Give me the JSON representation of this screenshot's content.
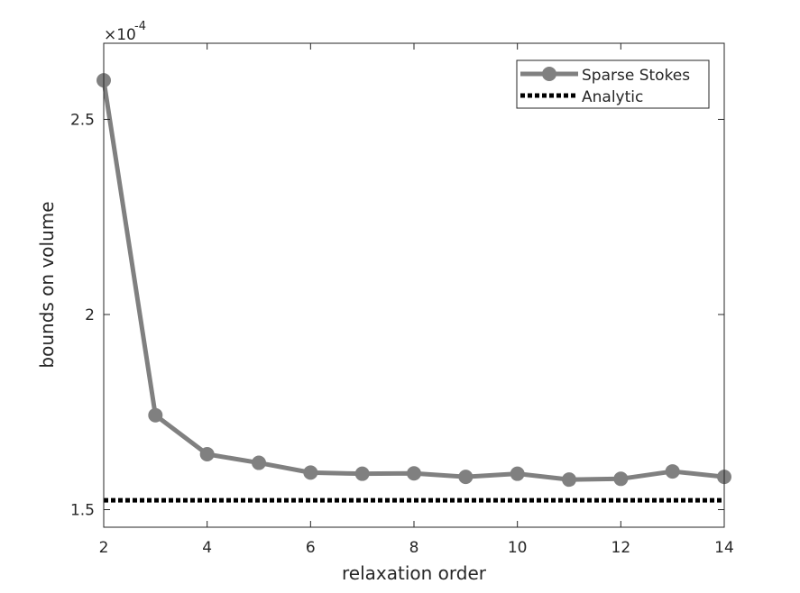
{
  "chart_data": {
    "type": "line",
    "xlabel": "relaxation order",
    "ylabel": "bounds on volume",
    "y_exponent_label": "×10",
    "y_exponent_power": "-4",
    "xlim": [
      2,
      14
    ],
    "ylim": [
      1.455,
      2.695
    ],
    "x_ticks": [
      2,
      4,
      6,
      8,
      10,
      12,
      14
    ],
    "x_tick_labels": [
      "2",
      "4",
      "6",
      "8",
      "10",
      "12",
      "14"
    ],
    "y_ticks": [
      1.5,
      2.0,
      2.5
    ],
    "y_tick_labels": [
      "1.5",
      "2",
      "2.5"
    ],
    "grid": false,
    "legend_position": "top-right",
    "series": [
      {
        "name": "Sparse Stokes",
        "style": "solid-with-markers",
        "color": "#808080",
        "x": [
          2,
          3,
          4,
          5,
          6,
          7,
          8,
          9,
          10,
          11,
          12,
          13,
          14
        ],
        "y": [
          2.6,
          1.742,
          1.642,
          1.62,
          1.595,
          1.592,
          1.593,
          1.584,
          1.592,
          1.577,
          1.579,
          1.598,
          1.584
        ]
      },
      {
        "name": "Analytic",
        "style": "dotted",
        "color": "#000000",
        "x": [
          2,
          14
        ],
        "y": [
          1.524,
          1.524
        ]
      }
    ]
  }
}
